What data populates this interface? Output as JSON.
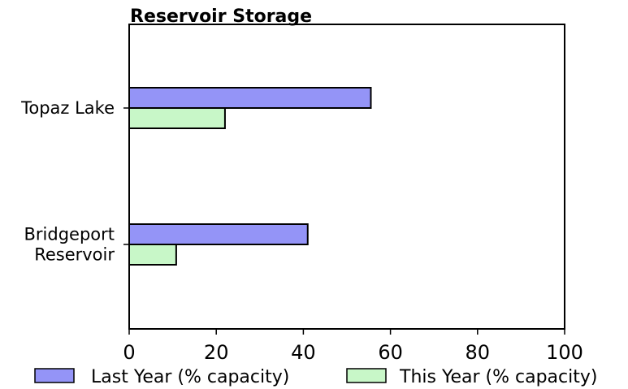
{
  "chart_data": {
    "type": "bar",
    "orientation": "horizontal",
    "title": "Reservoir Storage",
    "categories": [
      "Topaz Lake",
      "Bridgeport\nReservoir"
    ],
    "series": [
      {
        "name": "Last Year (% capacity)",
        "values": [
          55.5,
          41
        ],
        "color": "#9494f7"
      },
      {
        "name": "This Year (% capacity)",
        "values": [
          22,
          10.8
        ],
        "color": "#c8f7c8"
      }
    ],
    "xlim": [
      0,
      100
    ],
    "xticks": [
      0,
      20,
      40,
      60,
      80,
      100
    ],
    "xlabel": "",
    "ylabel": "",
    "grid": false,
    "legend_position": "bottom"
  }
}
